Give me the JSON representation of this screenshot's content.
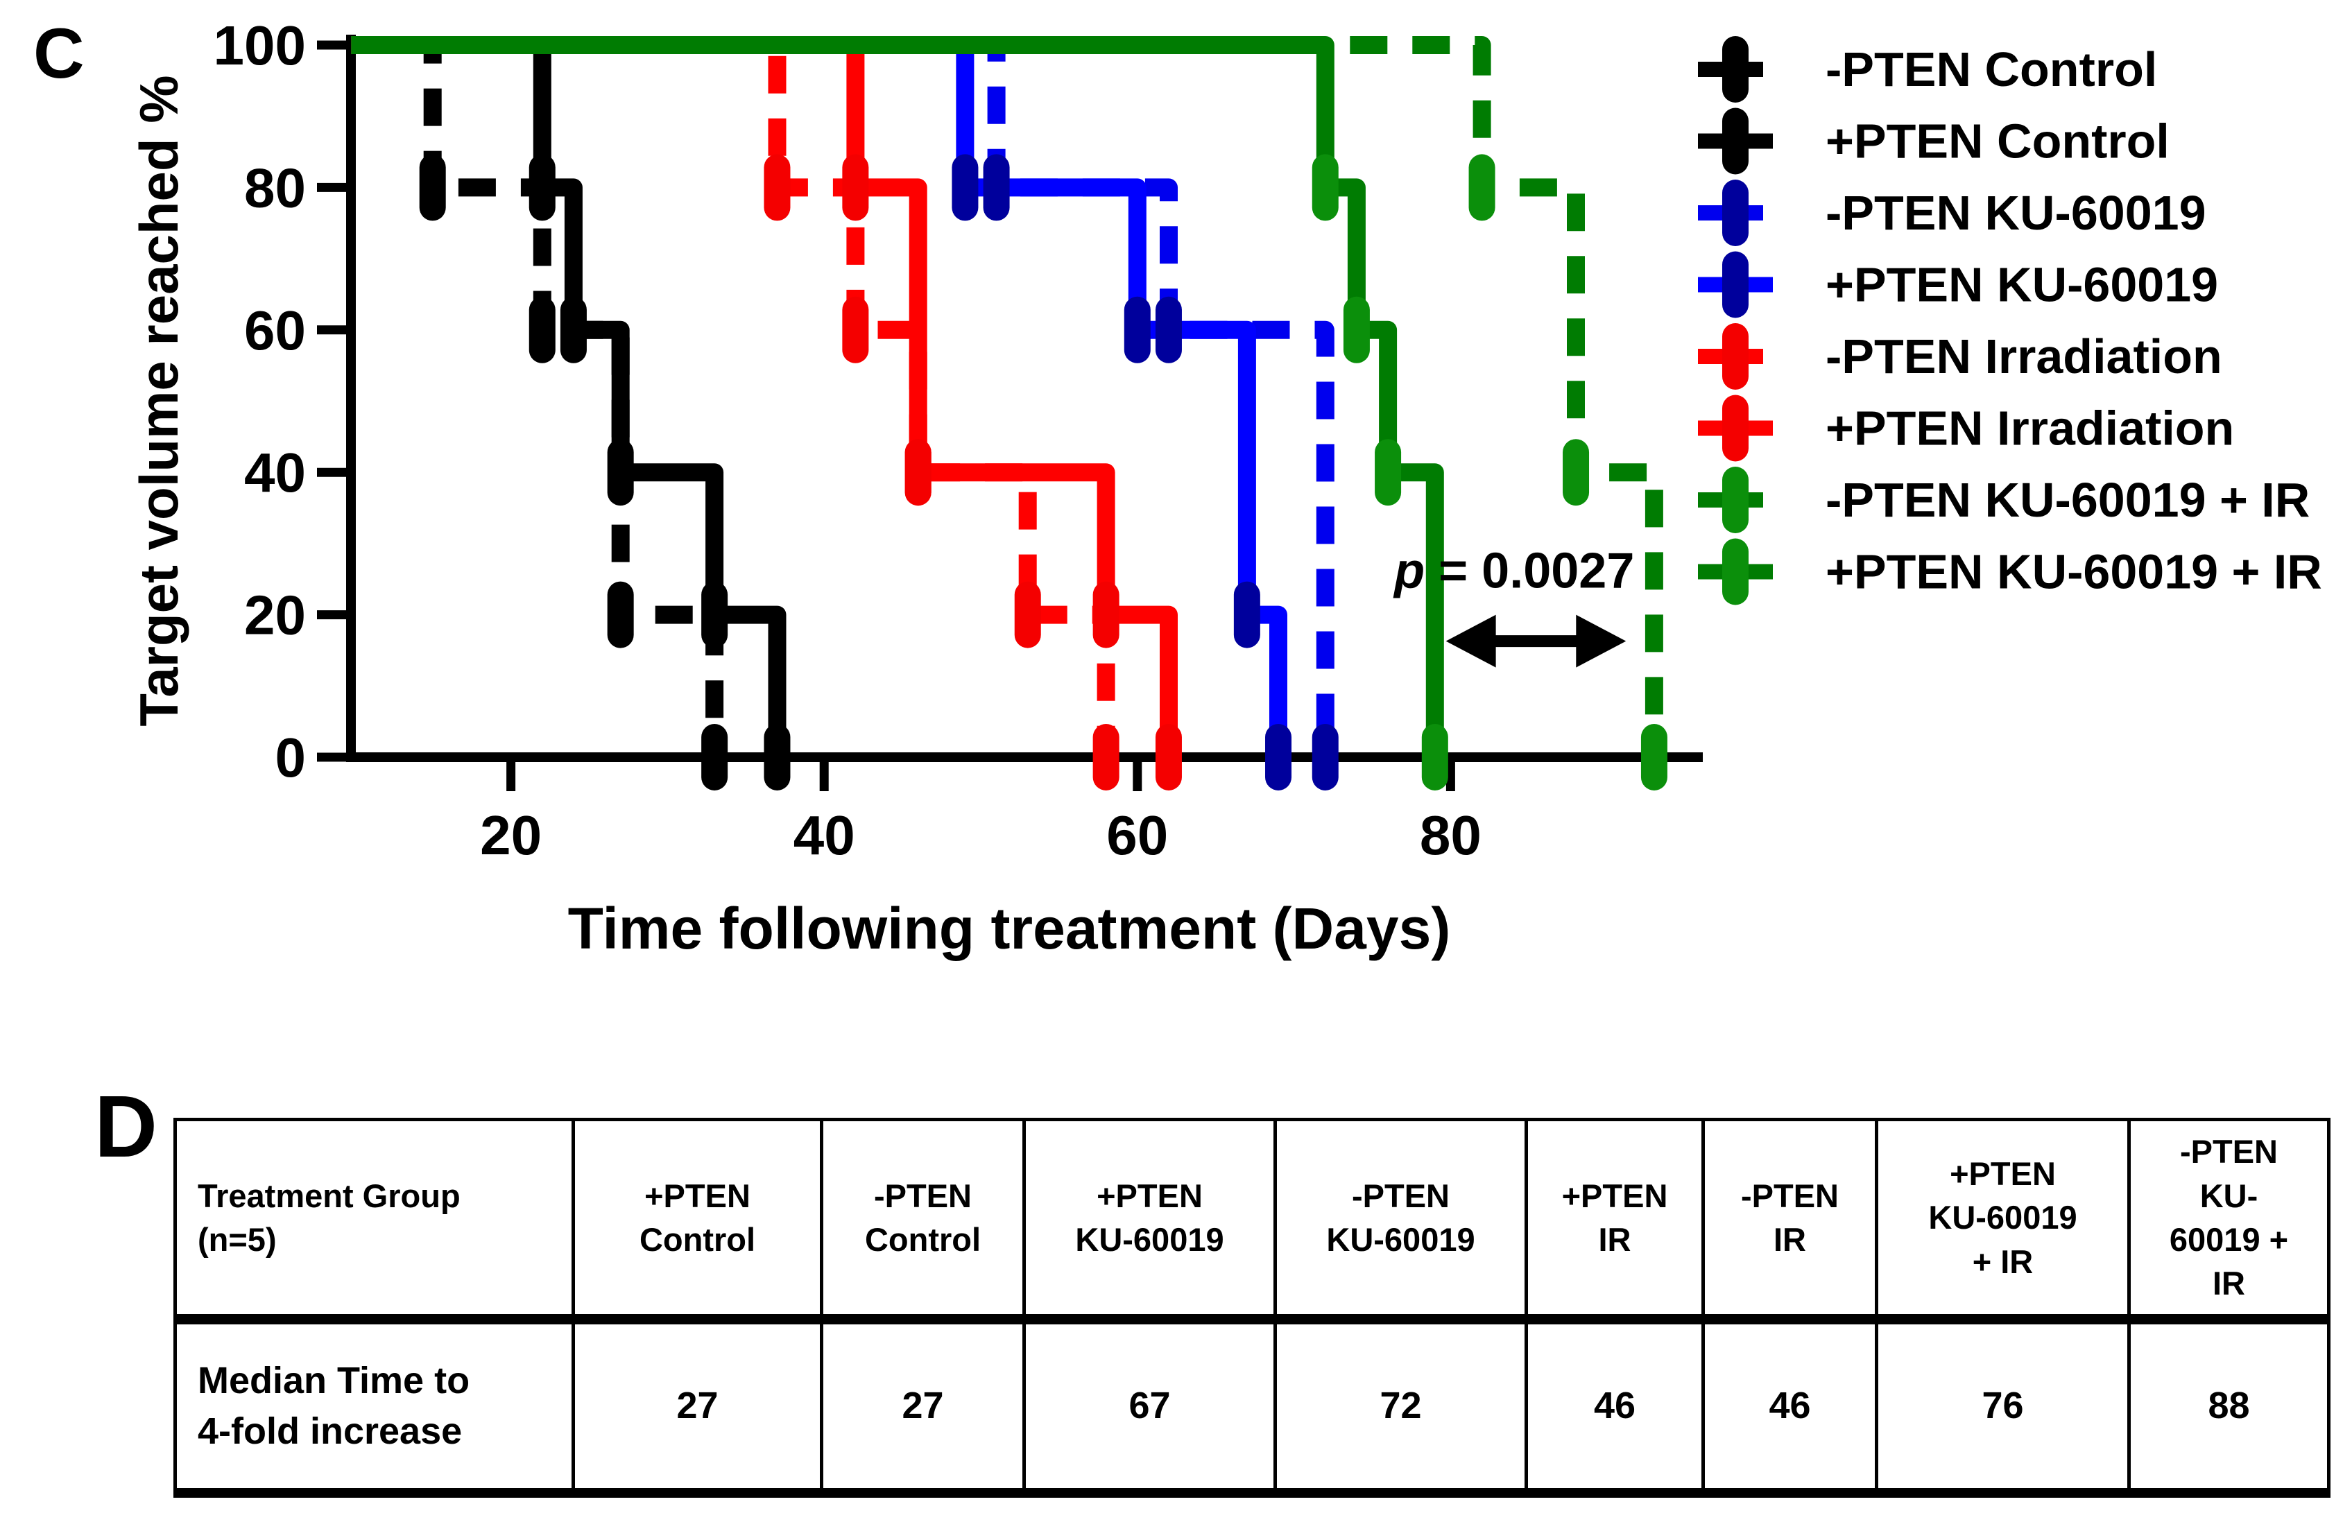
{
  "figure": {
    "panel_c_label": "C",
    "panel_d_label": "D"
  },
  "chart_data": {
    "type": "line",
    "variant": "kaplan_meier_step",
    "title": "",
    "xlabel": "Time following treatment (Days)",
    "ylabel": "Target volume reached %",
    "x_ticks": [
      20,
      40,
      60,
      80
    ],
    "y_ticks": [
      0,
      20,
      40,
      60,
      80,
      100
    ],
    "x_start_day": 9.8,
    "x_end_day": 96,
    "ylim": [
      0,
      100
    ],
    "start_level_pct": 100,
    "grid": false,
    "legend_position": "right",
    "series": [
      {
        "name": "-PTEN Control",
        "color": "#000000",
        "marker_color": "#000000",
        "style": "dashed",
        "drops": [
          [
            15,
            80
          ],
          [
            22,
            60
          ],
          [
            27,
            20
          ],
          [
            33,
            0
          ]
        ]
      },
      {
        "name": "+PTEN Control",
        "color": "#000000",
        "marker_color": "#000000",
        "style": "solid",
        "drops": [
          [
            22,
            80
          ],
          [
            24,
            60
          ],
          [
            27,
            40
          ],
          [
            33,
            20
          ],
          [
            37,
            0
          ]
        ]
      },
      {
        "name": "-PTEN KU-60019",
        "color": "#0000ee",
        "marker_color": "#00009c",
        "style": "dashed",
        "drops": [
          [
            51,
            80
          ],
          [
            62,
            60
          ],
          [
            72,
            0
          ]
        ]
      },
      {
        "name": "+PTEN KU-60019",
        "color": "#0000ff",
        "marker_color": "#00009c",
        "style": "solid",
        "drops": [
          [
            49,
            80
          ],
          [
            60,
            60
          ],
          [
            67,
            20
          ],
          [
            69,
            0
          ]
        ]
      },
      {
        "name": "-PTEN Irradiation",
        "color": "#fe0000",
        "marker_color": "#f40000",
        "style": "dashed",
        "drops": [
          [
            37,
            80
          ],
          [
            42,
            60
          ],
          [
            46,
            40
          ],
          [
            53,
            20
          ],
          [
            58,
            0
          ]
        ]
      },
      {
        "name": "+PTEN Irradiation",
        "color": "#fe0000",
        "marker_color": "#f40000",
        "style": "solid",
        "drops": [
          [
            42,
            80
          ],
          [
            46,
            40
          ],
          [
            58,
            20
          ],
          [
            62,
            0
          ]
        ]
      },
      {
        "name": "-PTEN KU-60019 + IR",
        "color": "#007c02",
        "marker_color": "#0b8f0b",
        "style": "dashed",
        "drops": [
          [
            82,
            80
          ],
          [
            88,
            40
          ],
          [
            93,
            0
          ]
        ]
      },
      {
        "name": "+PTEN KU-60019 + IR",
        "color": "#007c02",
        "marker_color": "#0b8f0b",
        "style": "solid",
        "drops": [
          [
            72,
            80
          ],
          [
            74,
            60
          ],
          [
            76,
            40
          ],
          [
            79,
            0
          ]
        ]
      }
    ],
    "annotation": {
      "p_symbol": "p",
      "p_rest": " = 0.0027",
      "text_x_day": 76.4,
      "text_y_pct": 24,
      "arrow_from_day": 79.7,
      "arrow_to_day": 91.2,
      "arrow_y_pct": 16.3
    }
  },
  "table": {
    "header": [
      [
        "Treatment Group",
        "(n=5)"
      ],
      [
        "+PTEN",
        "Control"
      ],
      [
        "-PTEN",
        "Control"
      ],
      [
        "+PTEN",
        "KU-60019"
      ],
      [
        "-PTEN",
        "KU-60019"
      ],
      [
        "+PTEN",
        "IR"
      ],
      [
        "-PTEN",
        "IR"
      ],
      [
        "+PTEN",
        "KU-60019",
        "+ IR"
      ],
      [
        "-PTEN",
        "KU-",
        "60019 +",
        "IR"
      ]
    ],
    "row_label": [
      "Median Time to",
      "4-fold increase"
    ],
    "values": [
      "27",
      "27",
      "67",
      "72",
      "46",
      "46",
      "76",
      "88"
    ]
  }
}
